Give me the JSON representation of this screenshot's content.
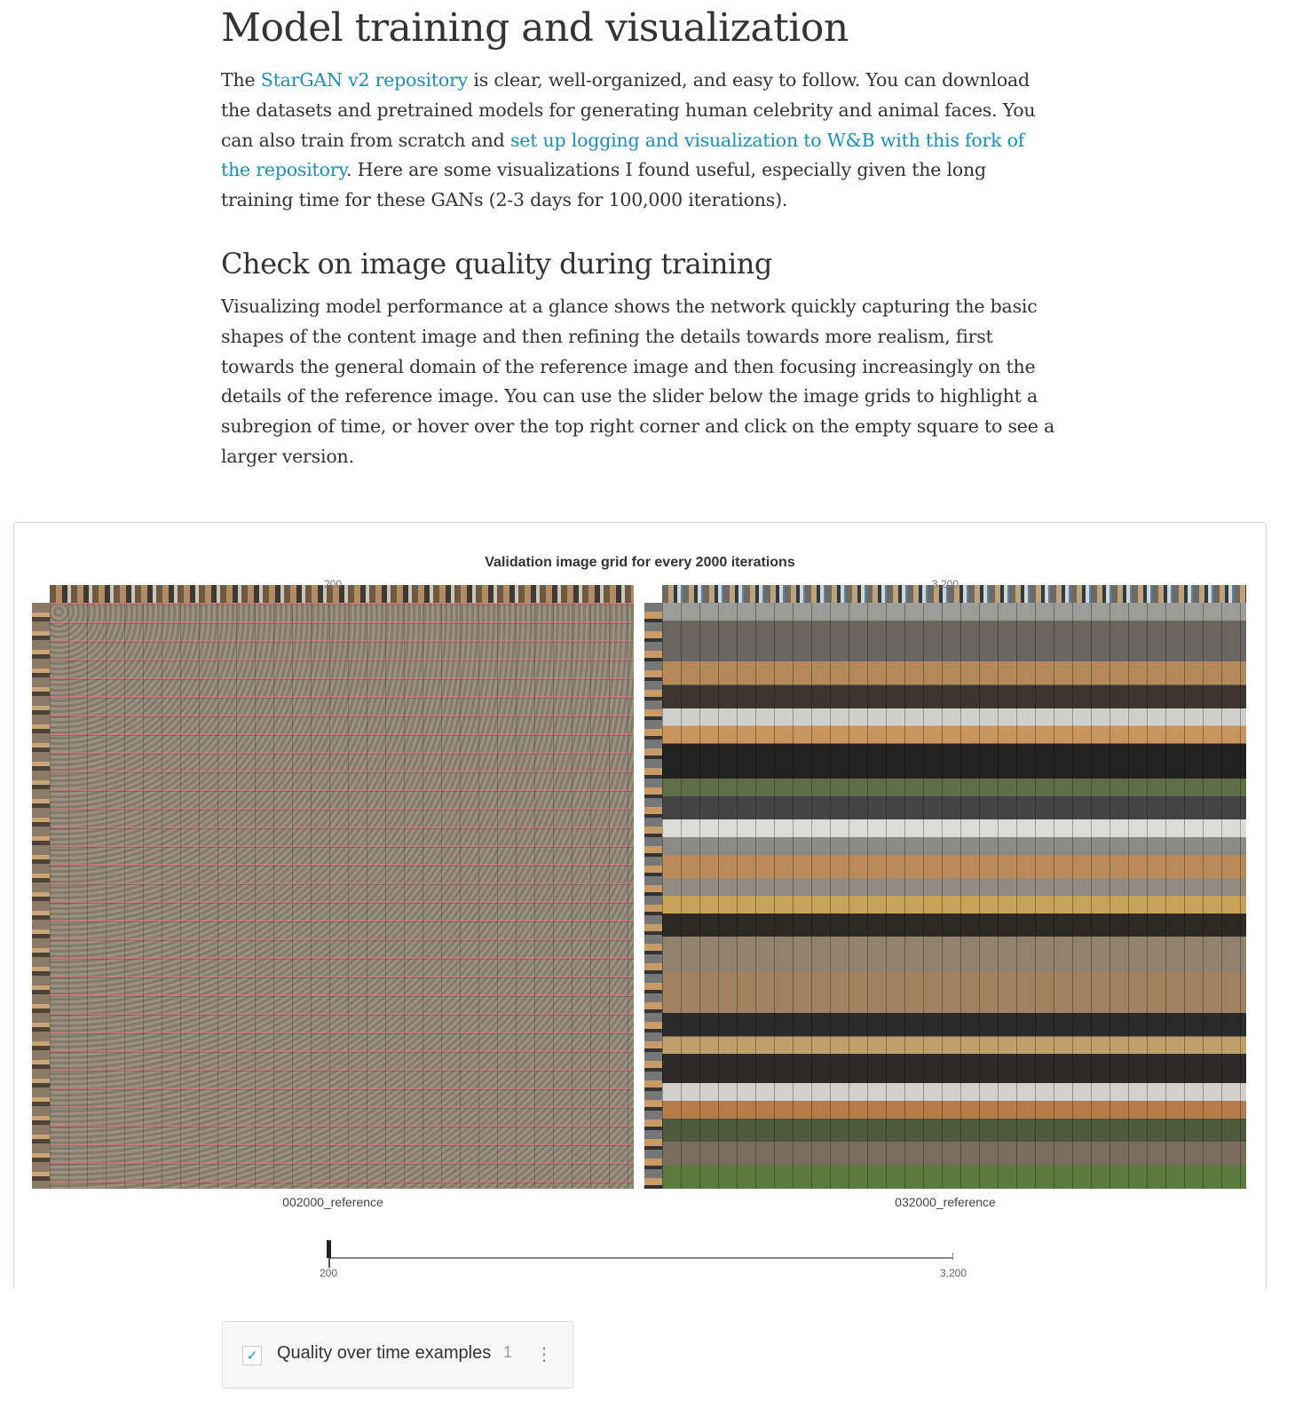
{
  "heading1": "Model training and visualization",
  "para1": {
    "t1": "The ",
    "link1": "StarGAN v2 repository",
    "t2": " is clear, well-organized, and easy to follow. You can download the datasets and pretrained models for generating human celebrity and animal faces. You can also train from scratch and ",
    "link2": "set up logging and visualization to W&B with this fork of the repository",
    "t3": ". Here are some visualizations I found useful, especially given the long training time for these GANs (2-3 days for 100,000 iterations)."
  },
  "heading2": "Check on image quality during training",
  "para2": "Visualizing model performance at a glance shows the network quickly capturing the basic shapes of the content image and then refining the details towards more realism, first towards the general domain of the reference image and then focusing increasingly on the details of the reference image. You can use the slider below the image grids to highlight a subregion of time, or hover over the top right corner and click on the empty square to see a larger version.",
  "panel": {
    "title": "Validation image grid for every 2000 iterations",
    "images": [
      {
        "step": "200",
        "caption": "002000_reference"
      },
      {
        "step": "3,200",
        "caption": "032000_reference"
      }
    ],
    "slider": {
      "min": "200",
      "max": "3,200",
      "value": 200
    }
  },
  "toc": {
    "label": "Quality over time examples",
    "count": "1",
    "checked": true,
    "check_icon": "✓",
    "more_icon": "⋮"
  },
  "colors": {
    "link": "#1a8fb8",
    "text": "#333333"
  }
}
